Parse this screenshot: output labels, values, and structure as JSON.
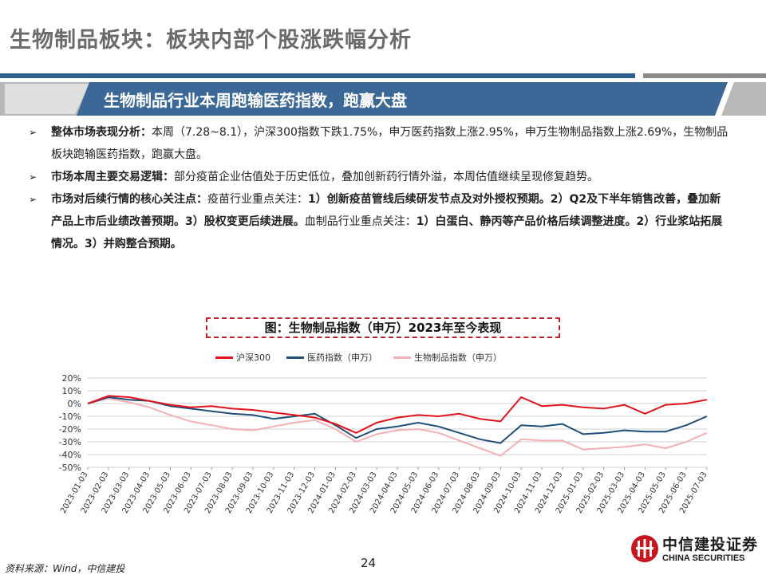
{
  "slide": {
    "title": "生物制品板块：板块内部个股涨跌幅分析",
    "banner": "生物制品行业本周跑输医药指数，跑赢大盘",
    "page_number": "24",
    "source": "资料来源：Wind，中信建投",
    "logo_cn": "中信建投证券",
    "logo_en": "CHINA SECURITIES",
    "corner_number": "24"
  },
  "bullets": [
    {
      "label": "整体市场表现分析：",
      "text": "本周（7.28~8.1），沪深300指数下跌1.75%，申万医药指数上涨2.95%，申万生物制品指数上涨2.69%，生物制品板块跑输医药指数，跑赢大盘。"
    },
    {
      "label": "市场本周主要交易逻辑：",
      "text": "部分疫苗企业估值处于历史低位，叠加创新药行情外溢，本周估值继续呈现修复趋势。"
    },
    {
      "label": "市场对后续行情的核心关注点：",
      "text_plain": "疫苗行业重点关注：",
      "text_bold1": "1）创新疫苗管线后续研发节点及对外授权预期。2）Q2及下半年销售改善，叠加新产品上市后业绩改善预期。3）股权变更后续进展。",
      "text_plain2": "血制品行业重点关注：",
      "text_bold2": "1）白蛋白、静丙等产品价格后续调整进度。2）行业浆站拓展情况。3）并购整合预期。"
    }
  ],
  "chart_data": {
    "type": "line",
    "title": "图：生物制品指数（申万）2023年至今表现",
    "ylim": [
      -50,
      20
    ],
    "yticks": [
      "20%",
      "10%",
      "0%",
      "-10%",
      "-20%",
      "-30%",
      "-40%",
      "-50%"
    ],
    "categories": [
      "2023-01-03",
      "2023-02-03",
      "2023-03-03",
      "2023-04-03",
      "2023-05-03",
      "2023-06-03",
      "2023-07-03",
      "2023-08-03",
      "2023-09-03",
      "2023-10-03",
      "2023-11-03",
      "2023-12-03",
      "2024-01-03",
      "2024-02-03",
      "2024-03-03",
      "2024-04-03",
      "2024-05-03",
      "2024-06-03",
      "2024-07-03",
      "2024-08-03",
      "2024-09-03",
      "2024-10-03",
      "2024-11-03",
      "2024-12-03",
      "2025-01-03",
      "2025-02-03",
      "2025-03-03",
      "2025-04-03",
      "2025-05-03",
      "2025-06-03",
      "2025-07-03"
    ],
    "grid": true,
    "legend": "top",
    "series": [
      {
        "name": "沪深300",
        "color": "#e3131b",
        "values": [
          0,
          6,
          5,
          2,
          -1,
          -3,
          -2,
          -4,
          -5,
          -7,
          -9,
          -11,
          -16,
          -23,
          -15,
          -11,
          -9,
          -10,
          -8,
          -12,
          -14,
          5,
          -2,
          -1,
          -3,
          -4,
          -1,
          -8,
          -1,
          0,
          3
        ]
      },
      {
        "name": "医药指数（申万）",
        "color": "#1f4e79",
        "values": [
          0,
          5,
          3,
          2,
          -2,
          -4,
          -6,
          -8,
          -9,
          -12,
          -10,
          -8,
          -17,
          -27,
          -20,
          -18,
          -15,
          -18,
          -23,
          -28,
          -31,
          -17,
          -18,
          -16,
          -24,
          -23,
          -21,
          -22,
          -22,
          -17,
          -10
        ]
      },
      {
        "name": "生物制品指数（申万）",
        "color": "#f4b0b4",
        "values": [
          0,
          4,
          1,
          -3,
          -9,
          -14,
          -17,
          -20,
          -21,
          -18,
          -15,
          -13,
          -20,
          -30,
          -24,
          -21,
          -20,
          -23,
          -29,
          -35,
          -41,
          -28,
          -29,
          -29,
          -36,
          -35,
          -34,
          -32,
          -35,
          -30,
          -23
        ]
      }
    ]
  }
}
